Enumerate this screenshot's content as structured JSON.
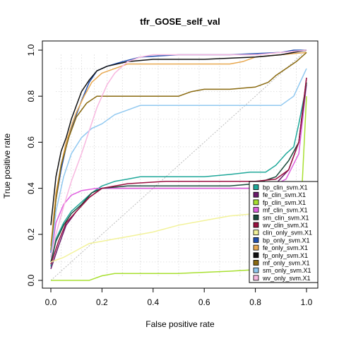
{
  "chart_data": {
    "type": "line",
    "title": "tfr_GOSE_self_val",
    "xlabel": "False positive rate",
    "ylabel": "True positive rate",
    "xlim": [
      0,
      1
    ],
    "ylim": [
      0,
      1
    ],
    "xticks": [
      "0.0",
      "0.2",
      "0.4",
      "0.6",
      "0.8",
      "1.0"
    ],
    "yticks": [
      "0.0",
      "0.2",
      "0.4",
      "0.6",
      "0.8",
      "1.0"
    ],
    "grid": false,
    "legend_position": "bottom-right",
    "diagonal_reference": true,
    "series": [
      {
        "name": "bp_clin_svm.X1",
        "color": "#1FA89A",
        "x": [
          0,
          0.02,
          0.05,
          0.08,
          0.12,
          0.16,
          0.2,
          0.25,
          0.3,
          0.35,
          0.45,
          0.6,
          0.7,
          0.78,
          0.84,
          0.88,
          0.92,
          0.95,
          0.97,
          1.0
        ],
        "y": [
          0.06,
          0.18,
          0.25,
          0.3,
          0.34,
          0.38,
          0.41,
          0.43,
          0.44,
          0.45,
          0.45,
          0.45,
          0.46,
          0.47,
          0.47,
          0.5,
          0.55,
          0.58,
          0.68,
          0.85
        ]
      },
      {
        "name": "fe_clin_svm.X1",
        "color": "#6B1A6B",
        "x": [
          0,
          0.03,
          0.06,
          0.1,
          0.15,
          0.2,
          0.3,
          0.4,
          0.6,
          0.8,
          0.88,
          0.93,
          0.97,
          1.0
        ],
        "y": [
          0.05,
          0.15,
          0.24,
          0.3,
          0.36,
          0.4,
          0.4,
          0.4,
          0.4,
          0.4,
          0.42,
          0.48,
          0.6,
          0.88
        ]
      },
      {
        "name": "fp_clin_svm.X1",
        "color": "#A8E030",
        "x": [
          0,
          0.15,
          0.2,
          0.25,
          0.3,
          0.5,
          0.7,
          0.85,
          0.92,
          0.97,
          1.0
        ],
        "y": [
          0,
          0,
          0.02,
          0.03,
          0.03,
          0.03,
          0.04,
          0.05,
          0.06,
          0.12,
          0.8
        ]
      },
      {
        "name": "mf_clin_svm.X1",
        "color": "#E060E0",
        "x": [
          0,
          0.02,
          0.05,
          0.08,
          0.12,
          0.18,
          0.3,
          0.5,
          0.7,
          0.85,
          0.92,
          0.97,
          1.0
        ],
        "y": [
          0.1,
          0.25,
          0.33,
          0.37,
          0.39,
          0.4,
          0.4,
          0.4,
          0.4,
          0.4,
          0.44,
          0.55,
          0.85
        ]
      },
      {
        "name": "sm_clin_svm.X1",
        "color": "#1A4A3A",
        "x": [
          0,
          0.02,
          0.05,
          0.08,
          0.12,
          0.16,
          0.2,
          0.3,
          0.5,
          0.7,
          0.8,
          0.88,
          0.93,
          0.97,
          1.0
        ],
        "y": [
          0.08,
          0.17,
          0.24,
          0.29,
          0.33,
          0.38,
          0.4,
          0.41,
          0.41,
          0.41,
          0.42,
          0.45,
          0.52,
          0.6,
          0.86
        ]
      },
      {
        "name": "wv_clin_svm.X1",
        "color": "#9A1040",
        "x": [
          0,
          0.03,
          0.06,
          0.1,
          0.15,
          0.2,
          0.3,
          0.45,
          0.6,
          0.8,
          0.88,
          0.93,
          0.97,
          1.0
        ],
        "y": [
          0.07,
          0.17,
          0.25,
          0.3,
          0.36,
          0.4,
          0.42,
          0.43,
          0.43,
          0.43,
          0.44,
          0.48,
          0.6,
          0.88
        ]
      },
      {
        "name": "clin_only_svm.X1",
        "color": "#F2F29A",
        "x": [
          0,
          0.05,
          0.1,
          0.15,
          0.2,
          0.25,
          0.3,
          0.4,
          0.5,
          0.6,
          0.7,
          0.8,
          0.85,
          0.9,
          0.95,
          1.0
        ],
        "y": [
          0.08,
          0.1,
          0.13,
          0.16,
          0.17,
          0.18,
          0.19,
          0.21,
          0.24,
          0.26,
          0.28,
          0.29,
          0.3,
          0.31,
          0.32,
          0.33
        ]
      },
      {
        "name": "bp_only_svm.X1",
        "color": "#2050B0",
        "x": [
          0,
          0.02,
          0.04,
          0.06,
          0.08,
          0.1,
          0.12,
          0.15,
          0.18,
          0.22,
          0.28,
          0.35,
          0.5,
          0.7,
          0.9,
          0.95,
          1.0
        ],
        "y": [
          0.12,
          0.35,
          0.48,
          0.58,
          0.66,
          0.72,
          0.78,
          0.86,
          0.91,
          0.93,
          0.95,
          0.97,
          0.98,
          0.98,
          0.99,
          1.0,
          1.0
        ]
      },
      {
        "name": "fe_only_svm.X1",
        "color": "#E8A850",
        "x": [
          0,
          0.02,
          0.04,
          0.06,
          0.08,
          0.1,
          0.13,
          0.16,
          0.2,
          0.25,
          0.3,
          0.5,
          0.7,
          0.75,
          0.8,
          0.9,
          1.0
        ],
        "y": [
          0.15,
          0.38,
          0.5,
          0.6,
          0.67,
          0.73,
          0.8,
          0.86,
          0.9,
          0.92,
          0.94,
          0.94,
          0.94,
          0.95,
          0.97,
          0.98,
          0.99
        ]
      },
      {
        "name": "fp_only_svm.X1",
        "color": "#111111",
        "x": [
          0,
          0.02,
          0.04,
          0.06,
          0.08,
          0.1,
          0.12,
          0.15,
          0.18,
          0.22,
          0.3,
          0.4,
          0.6,
          0.8,
          0.9,
          1.0
        ],
        "y": [
          0.24,
          0.45,
          0.56,
          0.62,
          0.7,
          0.76,
          0.82,
          0.87,
          0.91,
          0.93,
          0.95,
          0.96,
          0.96,
          0.97,
          0.98,
          1.0
        ]
      },
      {
        "name": "mf_only_svm.X1",
        "color": "#8A6A10",
        "x": [
          0,
          0.02,
          0.04,
          0.07,
          0.1,
          0.14,
          0.18,
          0.25,
          0.4,
          0.5,
          0.55,
          0.6,
          0.7,
          0.8,
          0.85,
          0.88,
          0.92,
          0.96,
          1.0
        ],
        "y": [
          0.13,
          0.35,
          0.5,
          0.62,
          0.71,
          0.77,
          0.8,
          0.8,
          0.8,
          0.8,
          0.82,
          0.83,
          0.83,
          0.84,
          0.86,
          0.89,
          0.92,
          0.95,
          0.99
        ]
      },
      {
        "name": "sm_only_svm.X1",
        "color": "#90C8F0",
        "x": [
          0,
          0.02,
          0.05,
          0.08,
          0.12,
          0.16,
          0.2,
          0.25,
          0.3,
          0.35,
          0.5,
          0.7,
          0.9,
          0.95,
          1.0
        ],
        "y": [
          0.1,
          0.3,
          0.45,
          0.55,
          0.62,
          0.66,
          0.68,
          0.72,
          0.74,
          0.76,
          0.76,
          0.76,
          0.76,
          0.8,
          0.92
        ]
      },
      {
        "name": "wv_only_svm.X1",
        "color": "#F8B8E0",
        "x": [
          0,
          0.02,
          0.05,
          0.08,
          0.12,
          0.15,
          0.18,
          0.22,
          0.25,
          0.3,
          0.35,
          0.4,
          0.5,
          0.7,
          0.8,
          0.9,
          1.0
        ],
        "y": [
          0.1,
          0.2,
          0.32,
          0.43,
          0.55,
          0.65,
          0.75,
          0.85,
          0.9,
          0.95,
          0.97,
          0.98,
          0.98,
          0.98,
          0.98,
          0.99,
          1.0
        ]
      }
    ]
  }
}
